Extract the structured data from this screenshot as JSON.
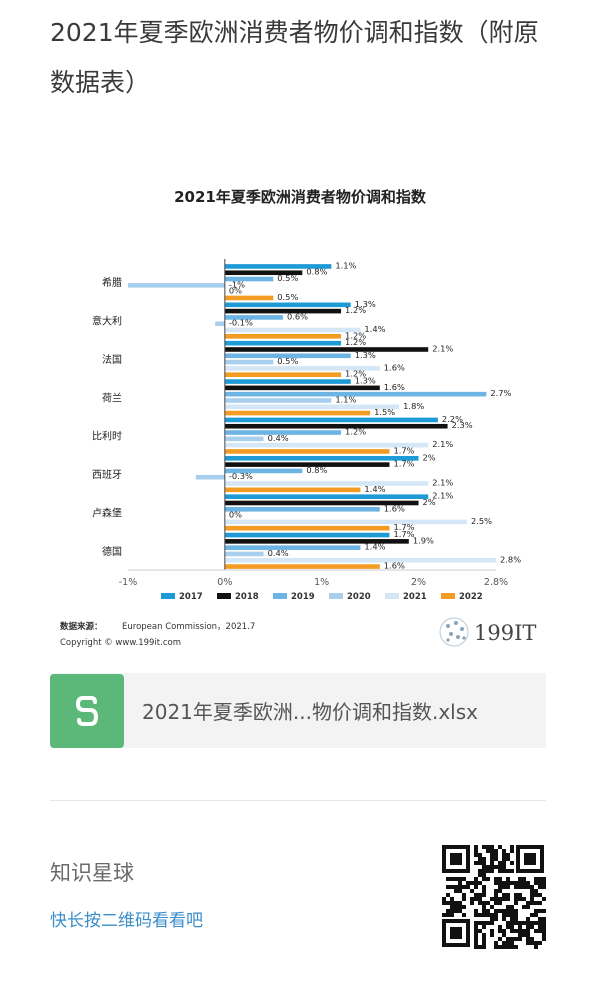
{
  "page": {
    "title": "2021年夏季欧洲消费者物价调和指数（附原数据表）"
  },
  "chart_data": {
    "type": "bar",
    "orientation": "horizontal",
    "title": "2021年夏季欧洲消费者物价调和指数",
    "xlabel": "",
    "ylabel": "",
    "xlim": [
      -1,
      2.8
    ],
    "x_ticks": [
      "-1%",
      "0%",
      "1%",
      "2%",
      "2.8%"
    ],
    "x_tick_values": [
      -1,
      0,
      1,
      2,
      2.8
    ],
    "categories": [
      "希腊",
      "意大利",
      "法国",
      "荷兰",
      "比利时",
      "西班牙",
      "卢森堡",
      "德国"
    ],
    "series": [
      {
        "name": "2017",
        "color": "#1e9bd7",
        "values": [
          1.1,
          1.3,
          1.2,
          1.3,
          2.2,
          2.0,
          2.1,
          1.7
        ],
        "labels": [
          "1.1%",
          "1.3%",
          "1.2%",
          "1.3%",
          "2.2%",
          "2%",
          "2.1%",
          "1.7%"
        ]
      },
      {
        "name": "2018",
        "color": "#111111",
        "values": [
          0.8,
          1.2,
          2.1,
          1.6,
          2.3,
          1.7,
          2.0,
          1.9
        ],
        "labels": [
          "0.8%",
          "1.2%",
          "2.1%",
          "1.6%",
          "2.3%",
          "1.7%",
          "2%",
          "1.9%"
        ]
      },
      {
        "name": "2019",
        "color": "#6cb4e4",
        "values": [
          0.5,
          0.6,
          1.3,
          2.7,
          1.2,
          0.8,
          1.6,
          1.4
        ],
        "labels": [
          "0.5%",
          "0.6%",
          "1.3%",
          "2.7%",
          "1.2%",
          "0.8%",
          "1.6%",
          "1.4%"
        ]
      },
      {
        "name": "2020",
        "color": "#a9cfee",
        "values": [
          -1.0,
          -0.1,
          0.5,
          1.1,
          0.4,
          -0.3,
          0.0,
          0.4
        ],
        "labels": [
          "-1%",
          "-0.1%",
          "0.5%",
          "1.1%",
          "0.4%",
          "-0.3%",
          "0%",
          "0.4%"
        ]
      },
      {
        "name": "2021",
        "color": "#d5e7f7",
        "values": [
          0.0,
          1.4,
          1.6,
          1.8,
          2.1,
          2.1,
          2.5,
          2.8
        ],
        "labels": [
          "0%",
          "1.4%",
          "1.6%",
          "1.8%",
          "2.1%",
          "2.1%",
          "2.5%",
          "2.8%"
        ]
      },
      {
        "name": "2022",
        "color": "#f39b22",
        "values": [
          0.5,
          1.2,
          1.2,
          1.5,
          1.7,
          1.4,
          1.7,
          1.6
        ],
        "labels": [
          "0.5%",
          "1.2%",
          "1.2%",
          "1.5%",
          "1.7%",
          "1.4%",
          "1.7%",
          "1.6%"
        ]
      }
    ],
    "legend_position": "bottom",
    "grid": false,
    "source_label": "数据来源：",
    "source_text": "European Commission，2021.7",
    "copyright": "Copyright © www.199it.com",
    "logo_text": "199IT"
  },
  "attachment": {
    "icon_letter": "S",
    "icon_color": "#5bb878",
    "filename": "2021年夏季欧洲...物价调和指数.xlsx"
  },
  "footer": {
    "title": "知识星球",
    "subtitle": "快长按二维码看看吧"
  }
}
